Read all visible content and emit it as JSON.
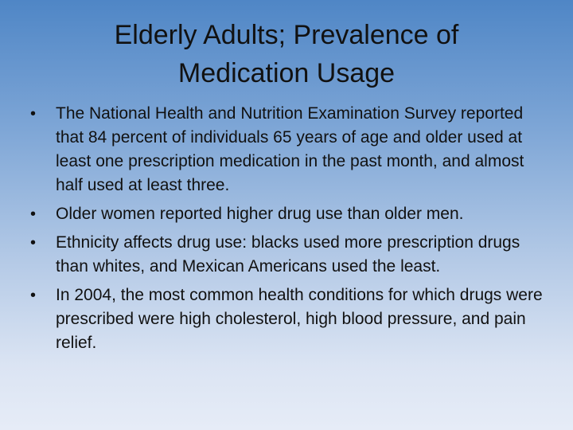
{
  "slide": {
    "title_line1": "Elderly Adults; Prevalence of",
    "title_line2": "Medication Usage",
    "bullet_symbol": "•",
    "bullets": [
      "The National Health and Nutrition Examination Survey reported that 84 percent of individuals 65 years of age and older used at least one prescription medication in the past month, and almost half used at least three.",
      "Older women reported higher drug use than older men.",
      "Ethnicity affects drug use: blacks used more prescription drugs than whites, and Mexican Americans used the least.",
      "In 2004, the most common health conditions for which drugs were prescribed were high cholesterol, high blood pressure, and pain relief."
    ]
  }
}
